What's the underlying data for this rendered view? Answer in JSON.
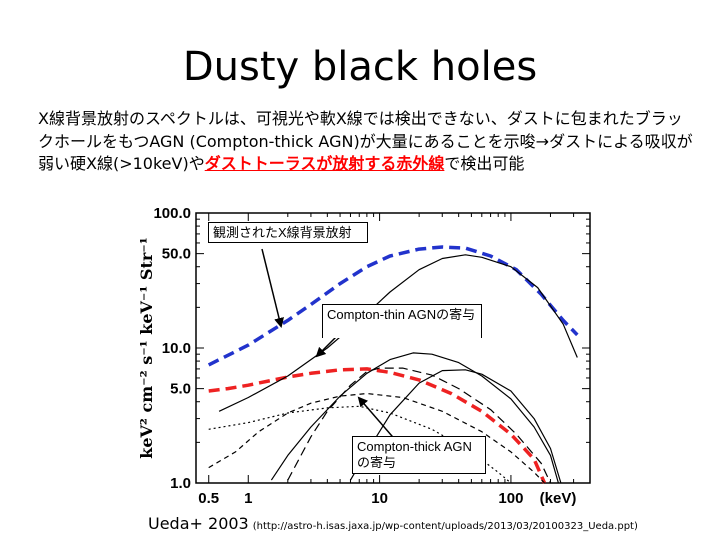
{
  "slide": {
    "title": "Dusty black holes",
    "paragraph_plain": "X線背景放射のスペクトルは、可視光や軟X線では検出できない、ダストに包まれたブラックホールをもつAGN (Compton-thick AGN)が大量にあることを示唆→ダストによる吸収が弱い硬X線(>10keV)や",
    "paragraph_highlight": "ダストトーラスが放射する赤外線",
    "paragraph_tail": "で検出可能",
    "citation_main": "Ueda+ 2003",
    "citation_url": "(http://astro-h.isas.jaxa.jp/wp-content/uploads/2013/03/20100323_Ueda.ppt)"
  },
  "annotations": {
    "observed": "観測されたX線背景放射",
    "thin": "Compton-thin AGNの寄与",
    "thick": "Compton-thick AGNの寄与"
  },
  "chart_data": {
    "type": "line",
    "xscale": "log",
    "yscale": "log",
    "xlim": [
      0.4,
      400
    ],
    "ylim": [
      1.0,
      100.0
    ],
    "xlabel": "(keV)",
    "ylabel": "keV² cm⁻² s⁻¹ keV⁻¹ Str⁻¹",
    "xticks": [
      {
        "v": 0.5,
        "label": "0.5"
      },
      {
        "v": 1,
        "label": "1"
      },
      {
        "v": 10,
        "label": "10"
      },
      {
        "v": 100,
        "label": "100"
      }
    ],
    "yticks": [
      {
        "v": 1.0,
        "label": "1.0"
      },
      {
        "v": 5.0,
        "label": "5.0"
      },
      {
        "v": 10.0,
        "label": "10.0"
      },
      {
        "v": 50.0,
        "label": "50.0"
      },
      {
        "v": 100.0,
        "label": "100.0"
      }
    ],
    "colors": {
      "observed": "#2233cc",
      "thin": "#ee2222",
      "components": "#000000"
    },
    "series": [
      {
        "style": "blue-dash",
        "points": [
          [
            0.5,
            7.5
          ],
          [
            1,
            10.5
          ],
          [
            2,
            16
          ],
          [
            3,
            21
          ],
          [
            5,
            30
          ],
          [
            8,
            40
          ],
          [
            12,
            48
          ],
          [
            20,
            54
          ],
          [
            30,
            56
          ],
          [
            45,
            55
          ],
          [
            70,
            48
          ],
          [
            110,
            38
          ],
          [
            170,
            25
          ],
          [
            250,
            16
          ],
          [
            320,
            12.5
          ]
        ]
      },
      {
        "style": "red-dash",
        "points": [
          [
            0.5,
            4.8
          ],
          [
            0.7,
            5.0
          ],
          [
            1,
            5.3
          ],
          [
            2,
            6.1
          ],
          [
            3,
            6.5
          ],
          [
            5,
            6.9
          ],
          [
            8,
            7.0
          ],
          [
            12,
            6.6
          ],
          [
            20,
            5.8
          ],
          [
            35,
            4.6
          ],
          [
            60,
            3.4
          ],
          [
            100,
            2.3
          ],
          [
            150,
            1.5
          ],
          [
            180,
            1.0
          ]
        ]
      },
      {
        "style": "black-solid",
        "points": [
          [
            0.6,
            3.4
          ],
          [
            1,
            4.3
          ],
          [
            2,
            6.2
          ],
          [
            4,
            10
          ],
          [
            7,
            16
          ],
          [
            12,
            26
          ],
          [
            20,
            38
          ],
          [
            30,
            46
          ],
          [
            45,
            49
          ],
          [
            60,
            47
          ],
          [
            100,
            40
          ],
          [
            160,
            28
          ],
          [
            250,
            15
          ],
          [
            320,
            8.5
          ]
        ]
      },
      {
        "style": "black-solid",
        "points": [
          [
            1.5,
            1.05
          ],
          [
            2,
            1.6
          ],
          [
            3,
            2.6
          ],
          [
            5,
            4.4
          ],
          [
            8,
            6.5
          ],
          [
            12,
            8.2
          ],
          [
            18,
            9.2
          ],
          [
            25,
            9.0
          ],
          [
            40,
            7.8
          ],
          [
            60,
            6.2
          ],
          [
            100,
            4.2
          ],
          [
            150,
            2.6
          ],
          [
            200,
            1.6
          ],
          [
            230,
            1.0
          ]
        ]
      },
      {
        "style": "black-solid",
        "points": [
          [
            6,
            1.05
          ],
          [
            8,
            1.7
          ],
          [
            12,
            3.2
          ],
          [
            20,
            5.5
          ],
          [
            30,
            6.8
          ],
          [
            45,
            6.9
          ],
          [
            60,
            6.4
          ],
          [
            100,
            4.8
          ],
          [
            150,
            3.0
          ],
          [
            200,
            1.8
          ],
          [
            240,
            1.0
          ]
        ]
      },
      {
        "style": "black-longdash",
        "points": [
          [
            2,
            1.05
          ],
          [
            3,
            2.2
          ],
          [
            4,
            3.4
          ],
          [
            6,
            5.3
          ],
          [
            8,
            6.7
          ],
          [
            10,
            7.1
          ],
          [
            15,
            7.1
          ],
          [
            25,
            6.3
          ],
          [
            40,
            5.0
          ],
          [
            70,
            3.5
          ],
          [
            110,
            2.3
          ],
          [
            170,
            1.4
          ],
          [
            200,
            1.0
          ]
        ]
      },
      {
        "style": "black-dash",
        "points": [
          [
            0.5,
            1.3
          ],
          [
            0.8,
            1.7
          ],
          [
            1.2,
            2.4
          ],
          [
            2,
            3.3
          ],
          [
            3,
            3.9
          ],
          [
            5,
            4.4
          ],
          [
            8,
            4.6
          ],
          [
            15,
            4.3
          ],
          [
            30,
            3.4
          ],
          [
            60,
            2.4
          ],
          [
            100,
            1.7
          ],
          [
            150,
            1.2
          ],
          [
            180,
            1.0
          ]
        ]
      },
      {
        "style": "black-dot",
        "points": [
          [
            0.5,
            2.5
          ],
          [
            1,
            2.8
          ],
          [
            2,
            3.3
          ],
          [
            4,
            3.6
          ],
          [
            7,
            3.7
          ],
          [
            12,
            3.3
          ],
          [
            25,
            2.5
          ],
          [
            50,
            1.7
          ],
          [
            80,
            1.2
          ],
          [
            100,
            1.0
          ]
        ]
      }
    ]
  }
}
